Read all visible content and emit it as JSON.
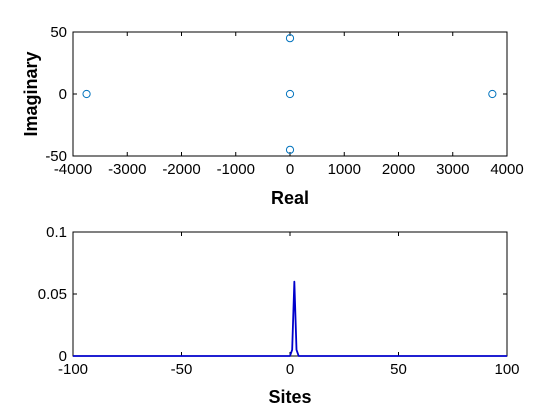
{
  "chart_data": [
    {
      "type": "scatter",
      "title": "",
      "xlabel": "Real",
      "ylabel": "Imaginary",
      "xlim": [
        -4000,
        4000
      ],
      "ylim": [
        -50,
        50
      ],
      "xticks": [
        -4000,
        -3000,
        -2000,
        -1000,
        0,
        1000,
        2000,
        3000,
        4000
      ],
      "yticks": [
        -50,
        0,
        50
      ],
      "xtick_labels": [
        "-4000",
        "-3000",
        "-2000",
        "-1000",
        "0",
        "1000",
        "2000",
        "3000",
        "4000"
      ],
      "ytick_labels": [
        "-50",
        "0",
        "50"
      ],
      "grid": false,
      "marker": "open-circle",
      "color": "#0072BD",
      "series": [
        {
          "x": [
            -3750,
            0,
            0,
            0,
            3730
          ],
          "y": [
            0,
            45,
            0,
            -45,
            0
          ]
        }
      ]
    },
    {
      "type": "line",
      "title": "",
      "xlabel": "Sites",
      "ylabel": "",
      "xlim": [
        -100,
        100
      ],
      "ylim": [
        0,
        0.1
      ],
      "xticks": [
        -100,
        -50,
        0,
        50,
        100
      ],
      "yticks": [
        0,
        0.05,
        0.1
      ],
      "xtick_labels": [
        "-100",
        "-50",
        "0",
        "50",
        "100"
      ],
      "ytick_labels": [
        "0",
        "0.05",
        "0.1"
      ],
      "grid": false,
      "color": "#0000CC",
      "series": [
        {
          "x": [
            -100,
            0,
            1,
            2,
            3,
            4,
            100
          ],
          "y": [
            0,
            0,
            0.005,
            0.06,
            0.005,
            0,
            0
          ]
        }
      ]
    }
  ]
}
